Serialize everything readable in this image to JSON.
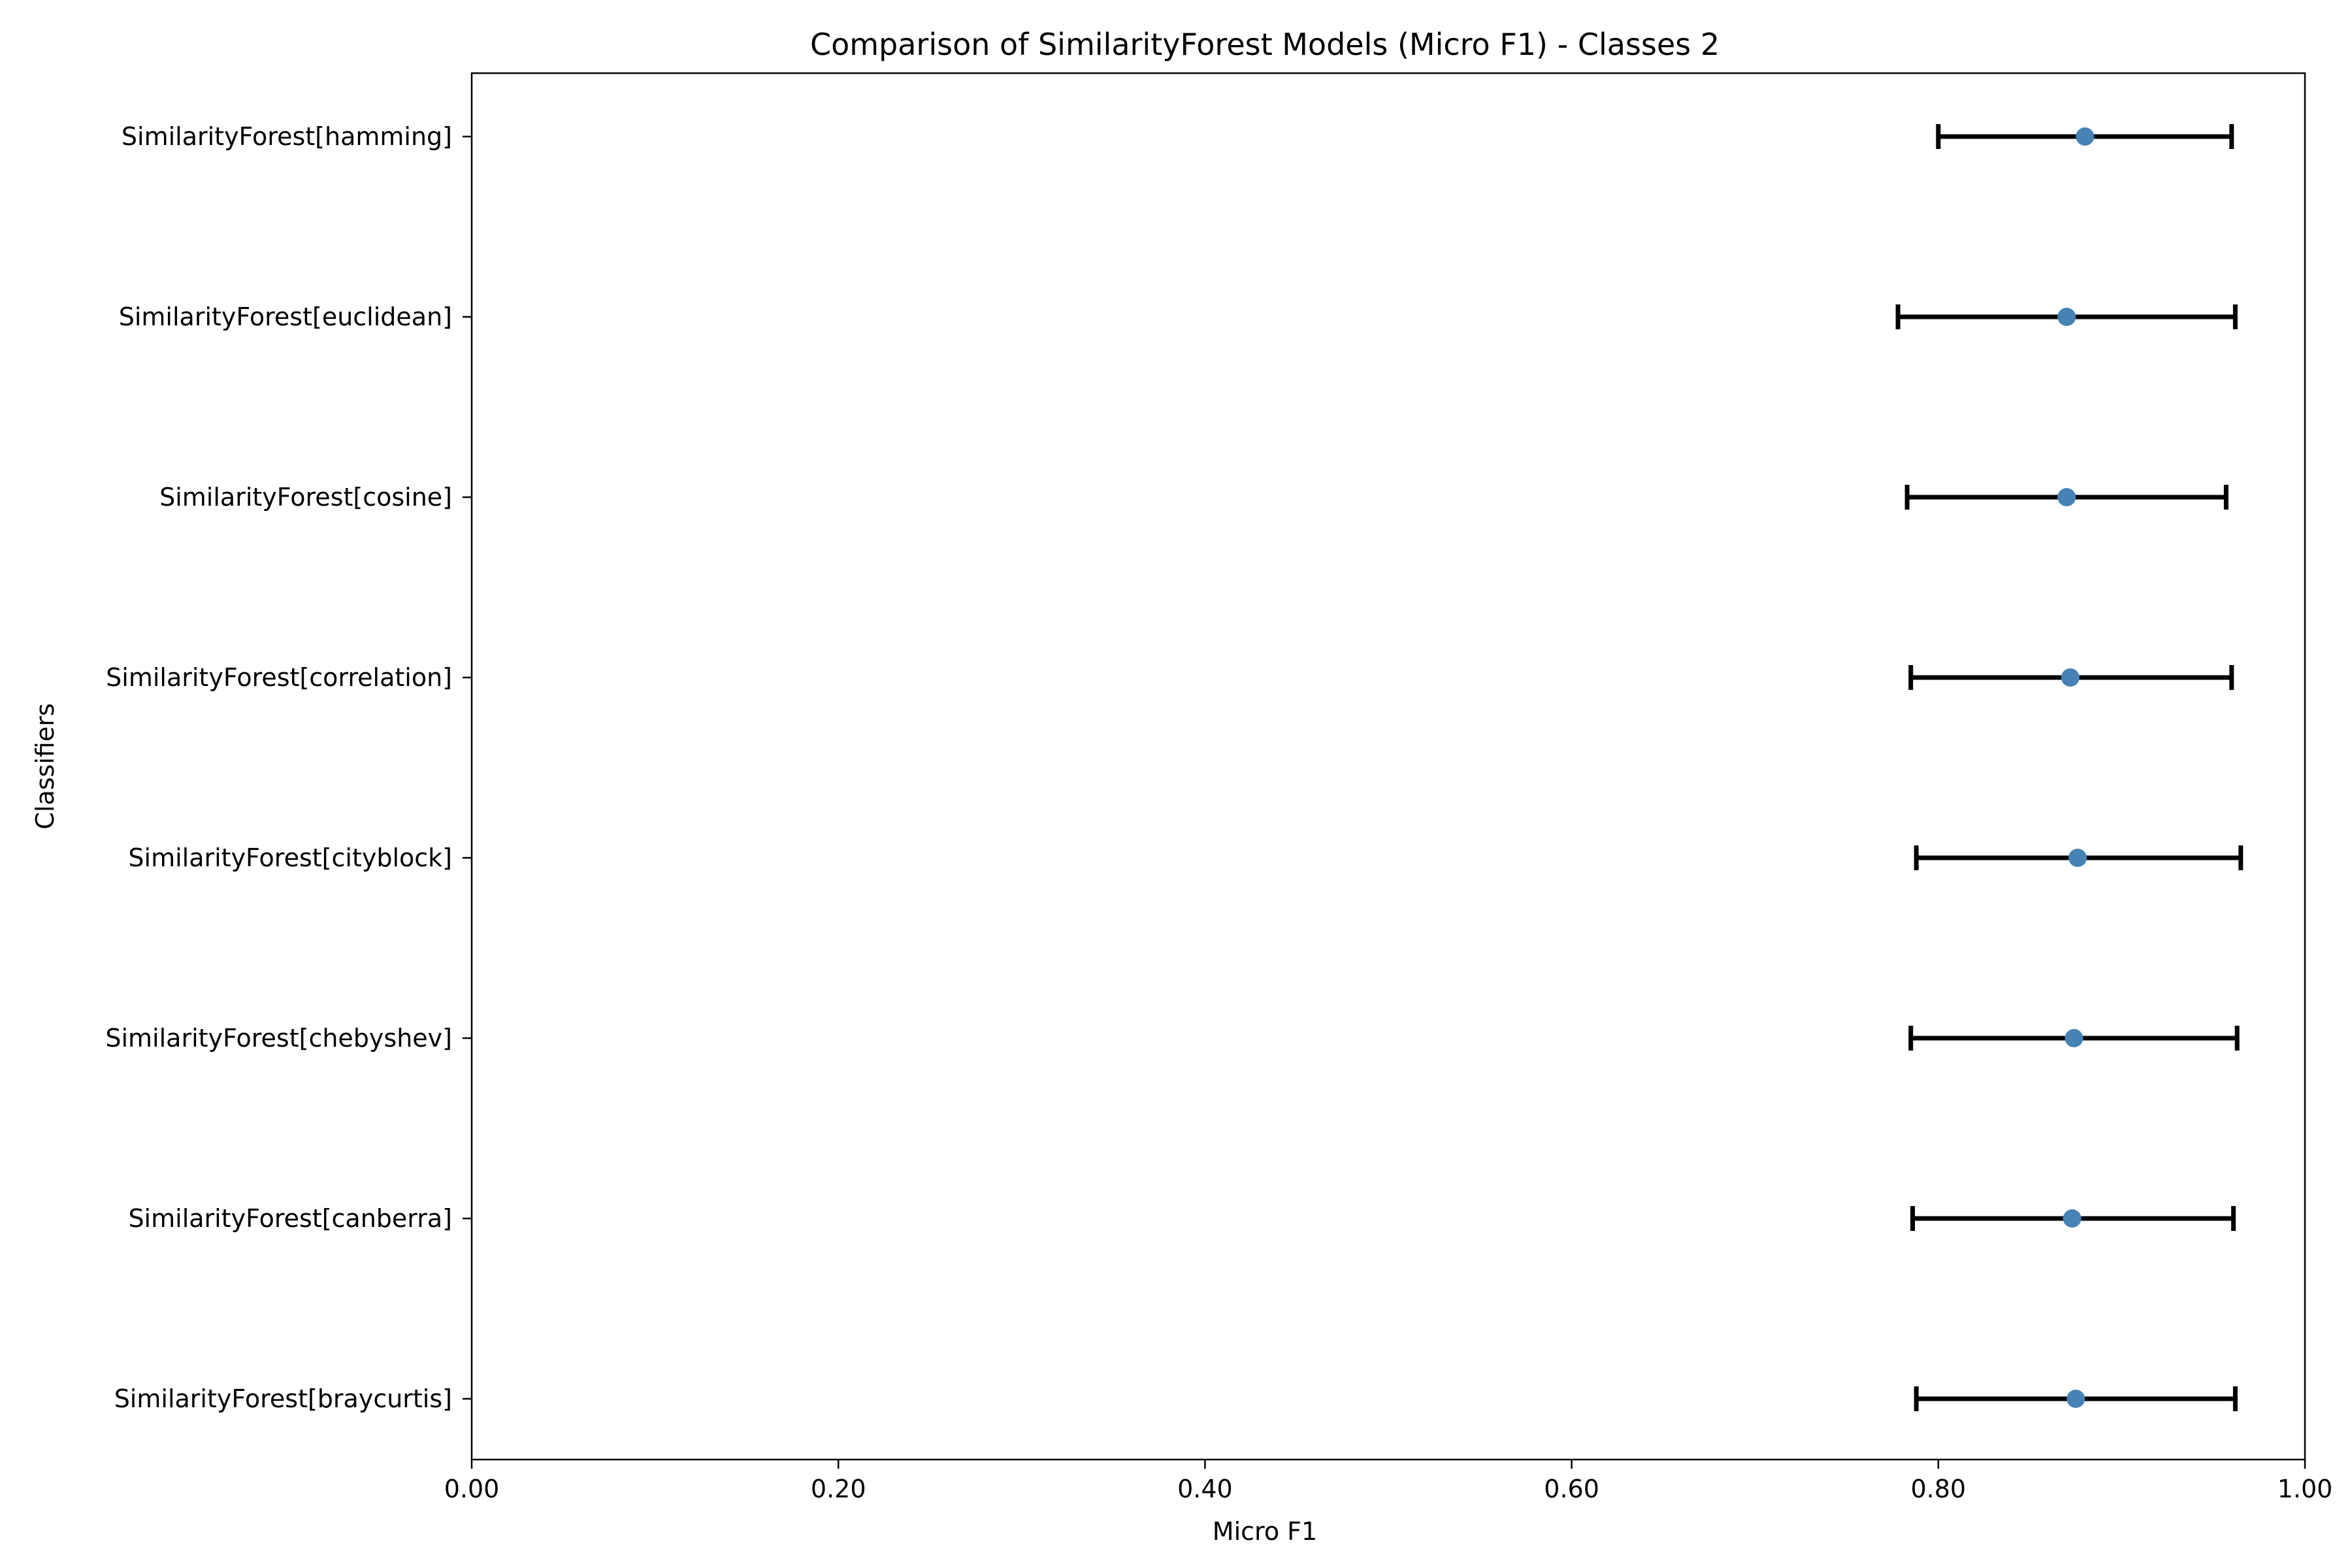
{
  "chart_data": {
    "type": "errorbar",
    "title": "Comparison of SimilarityForest Models (Micro F1) - Classes 2",
    "xlabel": "Micro F1",
    "ylabel": "Classifiers",
    "xlim": [
      0.0,
      1.0
    ],
    "xticks": [
      0.0,
      0.2,
      0.4,
      0.6,
      0.8,
      1.0
    ],
    "xtick_labels": [
      "0.00",
      "0.20",
      "0.40",
      "0.60",
      "0.80",
      "1.00"
    ],
    "grid": false,
    "point_color": "#4682b4",
    "errorbar_color": "#000000",
    "categories": [
      "SimilarityForest[hamming]",
      "SimilarityForest[euclidean]",
      "SimilarityForest[cosine]",
      "SimilarityForest[correlation]",
      "SimilarityForest[cityblock]",
      "SimilarityForest[chebyshev]",
      "SimilarityForest[canberra]",
      "SimilarityForest[braycurtis]"
    ],
    "values": [
      0.88,
      0.87,
      0.87,
      0.872,
      0.876,
      0.874,
      0.873,
      0.875
    ],
    "lower": [
      0.8,
      0.778,
      0.783,
      0.785,
      0.788,
      0.785,
      0.786,
      0.788
    ],
    "upper": [
      0.96,
      0.962,
      0.957,
      0.96,
      0.965,
      0.963,
      0.961,
      0.962
    ]
  }
}
